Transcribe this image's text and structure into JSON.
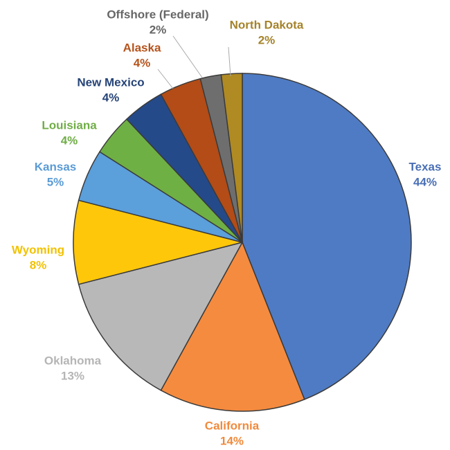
{
  "chart_data": {
    "type": "pie",
    "categories": [
      "Texas",
      "California",
      "Oklahoma",
      "Wyoming",
      "Kansas",
      "Louisiana",
      "New Mexico",
      "Alaska",
      "Offshore (Federal)",
      "North Dakota"
    ],
    "values": [
      44,
      14,
      13,
      8,
      5,
      4,
      4,
      4,
      2,
      2
    ],
    "value_labels": [
      "44%",
      "14%",
      "13%",
      "8%",
      "5%",
      "4%",
      "4%",
      "4%",
      "2%",
      "2%"
    ],
    "colors": [
      "#4f7bc4",
      "#f58b3f",
      "#b8b8b8",
      "#ffc70a",
      "#5b9fdb",
      "#6fb045",
      "#254a8a",
      "#b34c16",
      "#6e6e6e",
      "#b08a22"
    ]
  }
}
